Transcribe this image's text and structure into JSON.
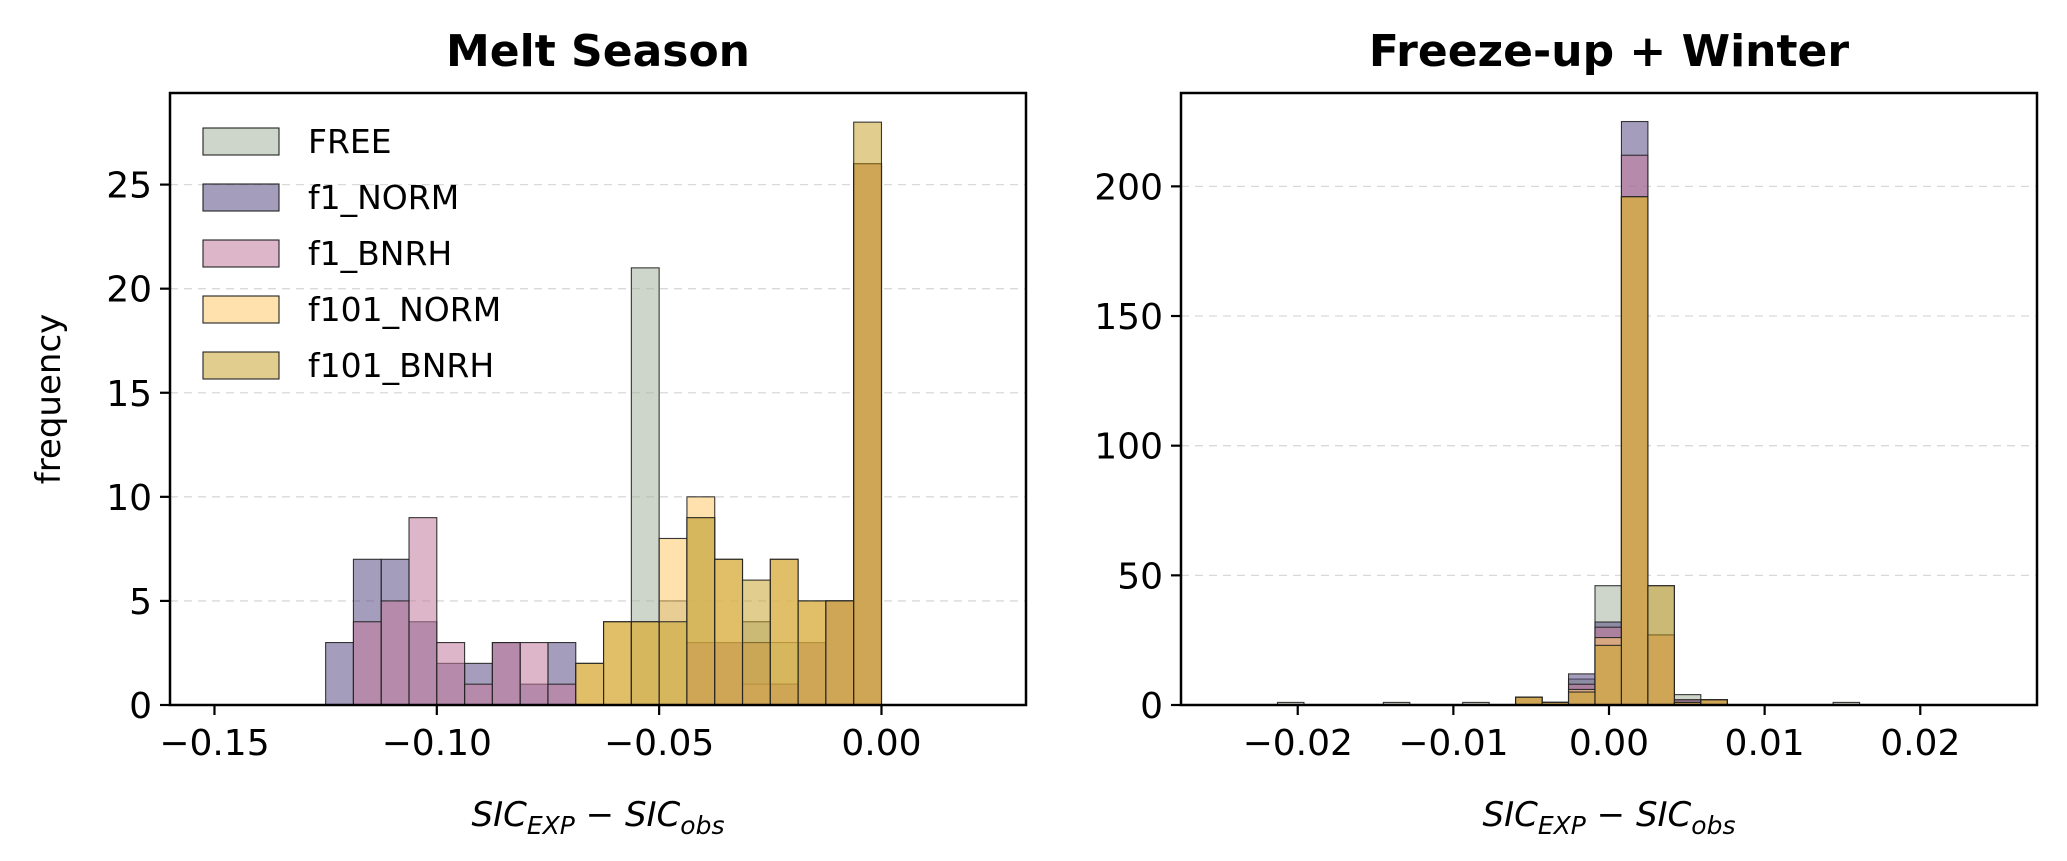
{
  "colors": {
    "FREE": "#a6b5a0",
    "f1_NORM": "#5a4f85",
    "f1_BNRH": "#c27a9d",
    "f101_NORM": "#fdc96a",
    "f101_BNRH": "#c9a431",
    "edge": "#222222"
  },
  "chart_data": [
    {
      "type": "bar",
      "title": "Melt Season",
      "xlabel_main": "SIC",
      "xlabel_sub1": "EXP",
      "xlabel_mid": " − SIC",
      "xlabel_sub2": "obs",
      "ylabel": "frequency",
      "xlim": [
        -0.16,
        0.0325
      ],
      "ylim": [
        0,
        29.4
      ],
      "xticks": [
        -0.15,
        -0.1,
        -0.05,
        0.0
      ],
      "xtick_labels": [
        "−0.15",
        "−0.10",
        "−0.05",
        "0.00"
      ],
      "yticks": [
        0,
        5,
        10,
        15,
        20,
        25
      ],
      "ytick_labels": [
        "0",
        "5",
        "10",
        "15",
        "20",
        "25"
      ],
      "grid": "y-dashed",
      "legend": "top-left",
      "legend_entries": [
        "FREE",
        "f1_NORM",
        "f1_BNRH",
        "f101_NORM",
        "f101_BNRH"
      ],
      "bin_edges": [
        -0.125,
        -0.11875,
        -0.1125,
        -0.10625,
        -0.1,
        -0.09375,
        -0.0875,
        -0.08125,
        -0.075,
        -0.06875,
        -0.0625,
        -0.05625,
        -0.05,
        -0.04375,
        -0.0375,
        -0.03125,
        -0.025,
        -0.01875,
        -0.0125,
        -0.00625,
        0.0
      ],
      "series": [
        {
          "name": "FREE",
          "values": [
            0,
            0,
            0,
            0,
            0,
            0,
            0,
            0,
            0,
            0,
            0,
            21,
            5,
            9,
            3,
            4,
            3,
            3,
            5,
            26
          ]
        },
        {
          "name": "f1_NORM",
          "values": [
            3,
            7,
            7,
            4,
            2,
            2,
            3,
            1,
            3,
            0,
            0,
            0,
            0,
            3,
            3,
            3,
            1,
            3,
            5,
            26
          ]
        },
        {
          "name": "f1_BNRH",
          "values": [
            0,
            4,
            5,
            9,
            3,
            1,
            3,
            3,
            1,
            0,
            0,
            0,
            0,
            3,
            3,
            1,
            1,
            3,
            5,
            26
          ]
        },
        {
          "name": "f101_NORM",
          "values": [
            0,
            0,
            0,
            0,
            0,
            0,
            0,
            0,
            0,
            2,
            4,
            4,
            8,
            10,
            7,
            3,
            7,
            5,
            5,
            26
          ]
        },
        {
          "name": "f101_BNRH",
          "values": [
            0,
            0,
            0,
            0,
            0,
            0,
            0,
            0,
            0,
            2,
            4,
            4,
            4,
            9,
            7,
            6,
            7,
            5,
            5,
            28
          ]
        }
      ]
    },
    {
      "type": "bar",
      "title": "Freeze-up + Winter",
      "xlabel_main": "SIC",
      "xlabel_sub1": "EXP",
      "xlabel_mid": " − SIC",
      "xlabel_sub2": "obs",
      "xlim": [
        -0.0275,
        0.0275
      ],
      "ylim": [
        0,
        236
      ],
      "xticks": [
        -0.02,
        -0.01,
        0.0,
        0.01,
        0.02
      ],
      "xtick_labels": [
        "−0.02",
        "−0.01",
        "0.00",
        "0.01",
        "0.02"
      ],
      "yticks": [
        0,
        50,
        100,
        150,
        200
      ],
      "ytick_labels": [
        "0",
        "50",
        "100",
        "150",
        "200"
      ],
      "grid": "y-dashed",
      "bin_edges": [
        -0.023,
        -0.0213,
        -0.0196,
        -0.0179,
        -0.0162,
        -0.0145,
        -0.0128,
        -0.0111,
        -0.0094,
        -0.0077,
        -0.006,
        -0.0043,
        -0.0026,
        -0.0009,
        0.0008,
        0.0025,
        0.0042,
        0.0059,
        0.0076,
        0.0093,
        0.011,
        0.0127,
        0.0144,
        0.0161
      ],
      "series": [
        {
          "name": "FREE",
          "values": [
            0,
            1,
            0,
            0,
            0,
            1,
            0,
            0,
            1,
            0,
            3,
            1,
            10,
            46,
            196,
            46,
            4,
            2,
            0,
            0,
            0,
            0,
            1
          ]
        },
        {
          "name": "f1_NORM",
          "values": [
            0,
            0,
            0,
            0,
            0,
            0,
            0,
            0,
            0,
            0,
            3,
            1,
            12,
            32,
            225,
            27,
            2,
            2,
            0,
            0,
            0,
            0,
            0
          ]
        },
        {
          "name": "f1_BNRH",
          "values": [
            0,
            0,
            0,
            0,
            0,
            0,
            0,
            0,
            0,
            0,
            3,
            1,
            8,
            30,
            212,
            27,
            2,
            2,
            0,
            0,
            0,
            0,
            0
          ]
        },
        {
          "name": "f101_NORM",
          "values": [
            0,
            0,
            0,
            0,
            0,
            0,
            0,
            0,
            0,
            0,
            3,
            1,
            6,
            26,
            196,
            27,
            1,
            2,
            0,
            0,
            0,
            0,
            0
          ]
        },
        {
          "name": "f101_BNRH",
          "values": [
            0,
            0,
            0,
            0,
            0,
            0,
            0,
            0,
            0,
            0,
            3,
            1,
            5,
            23,
            196,
            46,
            1,
            2,
            0,
            0,
            0,
            0,
            0
          ]
        }
      ]
    }
  ]
}
